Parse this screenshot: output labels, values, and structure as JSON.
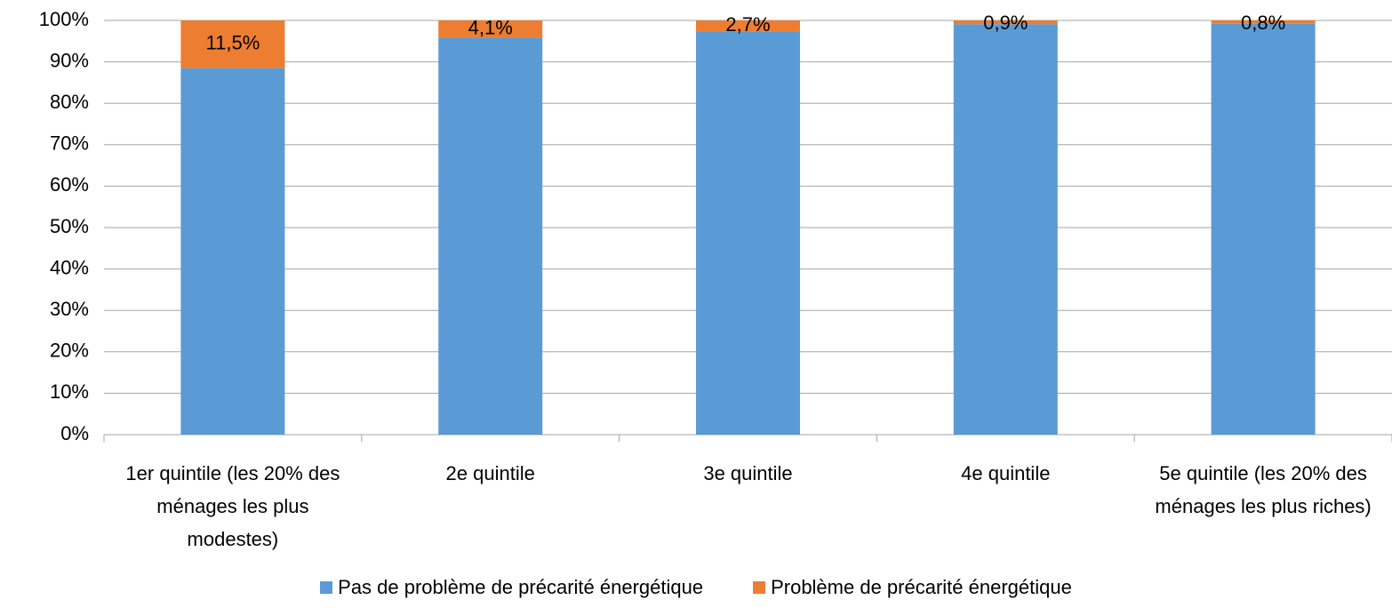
{
  "chart_data": {
    "type": "stacked_bar",
    "categories": [
      "1er quintile (les 20% des ménages les plus modestes)",
      "2e quintile",
      "3e quintile",
      "4e quintile",
      "5e quintile (les 20% des ménages les plus riches)"
    ],
    "series": [
      {
        "name": "Pas de problème de précarité énergétique",
        "color": "#5b9bd5",
        "values": [
          88.5,
          95.9,
          97.3,
          99.1,
          99.2
        ]
      },
      {
        "name": "Problème de précarité énergétique",
        "color": "#ed7d31",
        "values": [
          11.5,
          4.1,
          2.7,
          0.9,
          0.8
        ],
        "value_labels": [
          "11,5%",
          "4,1%",
          "2,7%",
          "0,9%",
          "0,8%"
        ]
      }
    ],
    "ylim": [
      0,
      100
    ],
    "yticks": [
      {
        "value": 0,
        "label": "0%"
      },
      {
        "value": 10,
        "label": "10%"
      },
      {
        "value": 20,
        "label": "20%"
      },
      {
        "value": 30,
        "label": "30%"
      },
      {
        "value": 40,
        "label": "40%"
      },
      {
        "value": 50,
        "label": "50%"
      },
      {
        "value": 60,
        "label": "60%"
      },
      {
        "value": 70,
        "label": "70%"
      },
      {
        "value": 80,
        "label": "80%"
      },
      {
        "value": 90,
        "label": "90%"
      },
      {
        "value": 100,
        "label": "100%"
      }
    ],
    "grid": true,
    "legend": "bottom"
  }
}
